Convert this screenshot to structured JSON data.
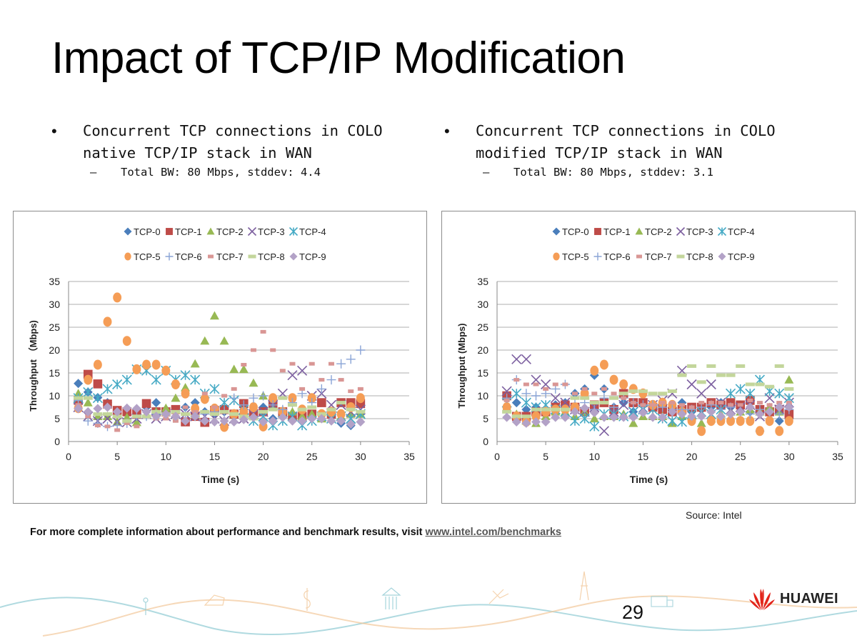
{
  "slide": {
    "title": "Impact of TCP/IP Modification",
    "page_number": "29",
    "brand": "HUAWEI",
    "source": "Source: Intel",
    "footnote_text": "For more complete information about performance and benchmark results, visit ",
    "footnote_link": "www.intel.com/benchmarks"
  },
  "bullets": {
    "left": {
      "bullet_glyph": "•",
      "line1": "Concurrent TCP connections in COLO",
      "line2": "native TCP/IP stack in WAN",
      "sub_dash": "–",
      "sub": "Total BW: 80 Mbps, stddev: 4.4"
    },
    "right": {
      "bullet_glyph": "•",
      "line1": "Concurrent TCP connections in COLO",
      "line2": "modified TCP/IP stack in WAN",
      "sub_dash": "–",
      "sub": "Total BW: 80 Mbps, stddev: 3.1"
    }
  },
  "colors": {
    "TCP-0": "#4a7ebb",
    "TCP-1": "#be4b48",
    "TCP-2": "#98b954",
    "TCP-3": "#7d60a0",
    "TCP-4": "#46aac5",
    "TCP-5": "#f59d56",
    "TCP-6": "#8aa4d6",
    "TCP-7": "#d99694",
    "TCP-8": "#c3d69b",
    "TCP-9": "#b3a2c7",
    "grid": "#bfbfbf",
    "brand_red": "#e2231a"
  },
  "chart_data": [
    {
      "type": "scatter",
      "title": "",
      "xlabel": "Time (s)",
      "ylabel": "Throughput （Mbps)",
      "xlim": [
        0,
        35
      ],
      "ylim": [
        0,
        35
      ],
      "xticks": [
        "0",
        "5",
        "10",
        "15",
        "20",
        "25",
        "30",
        "35"
      ],
      "yticks": [
        "0",
        "5",
        "10",
        "15",
        "20",
        "25",
        "30",
        "35"
      ],
      "grid": "horizontal",
      "legend_position": "top",
      "x": [
        1,
        2,
        3,
        4,
        5,
        6,
        7,
        8,
        9,
        10,
        11,
        12,
        13,
        14,
        15,
        16,
        17,
        18,
        19,
        20,
        21,
        22,
        23,
        24,
        25,
        26,
        27,
        28,
        29,
        30
      ],
      "series": [
        {
          "name": "TCP-0",
          "marker": "diamond",
          "values": [
            12.7,
            10.8,
            9.6,
            8.5,
            6.5,
            6.0,
            7.0,
            7.5,
            8.5,
            7.0,
            6.5,
            7.5,
            8.5,
            6.5,
            6.0,
            6.5,
            5.5,
            7.0,
            6.0,
            7.5,
            5.0,
            6.0,
            5.0,
            4.5,
            6.0,
            5.0,
            5.5,
            4.0,
            3.5,
            6.0
          ]
        },
        {
          "name": "TCP-1",
          "marker": "square",
          "values": [
            9.0,
            14.7,
            12.6,
            8.2,
            6.8,
            6.5,
            6.0,
            8.3,
            6.5,
            6.5,
            7.0,
            4.3,
            5.5,
            4.2,
            6.8,
            7.0,
            6.0,
            8.3,
            6.0,
            6.5,
            8.3,
            6.5,
            5.5,
            5.5,
            6.0,
            8.5,
            6.0,
            8.5,
            8.5,
            8.3
          ]
        },
        {
          "name": "TCP-2",
          "marker": "triangle",
          "values": [
            10.5,
            8.5,
            5.5,
            5.5,
            4.3,
            5.3,
            4.2,
            6.0,
            6.5,
            7.3,
            9.5,
            11.8,
            17.0,
            22.0,
            27.5,
            22.0,
            15.8,
            15.8,
            12.8,
            10.0,
            7.5,
            6.0,
            6.5,
            5.5,
            6.0,
            5.0,
            6.5,
            5.5,
            6.0,
            6.0
          ]
        },
        {
          "name": "TCP-3",
          "marker": "x",
          "values": [
            7.5,
            5.5,
            4.5,
            5.0,
            4.3,
            4.2,
            5.0,
            6.0,
            5.0,
            5.5,
            6.0,
            6.0,
            5.5,
            5.5,
            5.0,
            4.5,
            5.0,
            5.0,
            6.0,
            6.5,
            8.0,
            10.5,
            14.5,
            15.5,
            10.0,
            10.5,
            8.0,
            8.0,
            6.5,
            7.0
          ]
        },
        {
          "name": "TCP-4",
          "marker": "asterisk",
          "values": [
            9.5,
            10.8,
            9.5,
            11.5,
            12.5,
            13.5,
            15.8,
            15.5,
            13.5,
            15.5,
            13.5,
            14.5,
            13.5,
            10.5,
            11.5,
            8.5,
            9.0,
            7.0,
            4.5,
            5.5,
            3.5,
            4.5,
            5.5,
            3.5,
            4.5,
            5.5,
            5.0,
            5.5,
            5.0,
            6.0
          ]
        },
        {
          "name": "TCP-5",
          "marker": "circle",
          "values": [
            7.3,
            13.5,
            16.8,
            26.2,
            31.5,
            22.0,
            15.8,
            16.8,
            16.8,
            15.5,
            12.5,
            10.5,
            7.2,
            9.3,
            7.2,
            3.2,
            6.0,
            6.5,
            7.5,
            3.3,
            9.5,
            6.5,
            9.5,
            7.0,
            9.5,
            6.0,
            6.5,
            6.0,
            7.5,
            9.5
          ]
        },
        {
          "name": "TCP-6",
          "marker": "plus",
          "values": [
            9.0,
            4.5,
            4.0,
            3.3,
            3.5,
            4.0,
            5.5,
            5.5,
            6.0,
            6.0,
            5.5,
            6.0,
            5.5,
            6.0,
            6.5,
            6.5,
            9.5,
            8.0,
            9.5,
            10.0,
            8.0,
            7.0,
            8.5,
            10.5,
            8.5,
            11.5,
            13.5,
            17.0,
            18.0,
            20.0
          ]
        },
        {
          "name": "TCP-7",
          "marker": "dash",
          "values": [
            8.0,
            5.5,
            3.5,
            3.3,
            2.5,
            4.0,
            3.3,
            6.5,
            5.0,
            5.0,
            4.5,
            7.5,
            6.5,
            10.5,
            7.5,
            10.0,
            11.5,
            16.8,
            20.0,
            24.0,
            20.0,
            15.5,
            17.0,
            11.5,
            17.0,
            13.5,
            17.0,
            13.5,
            11.0,
            11.5
          ]
        },
        {
          "name": "TCP-8",
          "marker": "bar",
          "values": [
            9.5,
            9.5,
            6.0,
            6.0,
            5.5,
            4.5,
            5.5,
            5.5,
            6.5,
            6.0,
            6.5,
            6.0,
            5.5,
            6.5,
            6.0,
            6.5,
            6.0,
            5.5,
            5.0,
            6.5,
            7.0,
            9.5,
            8.0,
            7.0,
            7.5,
            6.0,
            7.0,
            8.5,
            7.0,
            6.5
          ]
        },
        {
          "name": "TCP-9",
          "marker": "diamond",
          "values": [
            7.2,
            6.5,
            7.2,
            7.5,
            6.5,
            7.3,
            7.2,
            6.5,
            5.5,
            6.0,
            5.5,
            4.5,
            5.5,
            4.5,
            4.3,
            4.5,
            4.3,
            4.8,
            5.3,
            4.3,
            4.5,
            5.3,
            4.5,
            4.5,
            5.0,
            5.0,
            4.5,
            4.5,
            3.8,
            4.3
          ]
        }
      ]
    },
    {
      "type": "scatter",
      "title": "",
      "xlabel": "Time (s)",
      "ylabel": "Throughput (Mbps)",
      "xlim": [
        0,
        35
      ],
      "ylim": [
        0,
        35
      ],
      "xticks": [
        "0",
        "5",
        "10",
        "15",
        "20",
        "25",
        "30",
        "35"
      ],
      "yticks": [
        "0",
        "5",
        "10",
        "15",
        "20",
        "25",
        "30",
        "35"
      ],
      "grid": "horizontal",
      "legend_position": "top",
      "x": [
        1,
        2,
        3,
        4,
        5,
        6,
        7,
        8,
        9,
        10,
        11,
        12,
        13,
        14,
        15,
        16,
        17,
        18,
        19,
        20,
        21,
        22,
        23,
        24,
        25,
        26,
        27,
        28,
        29,
        30
      ],
      "series": [
        {
          "name": "TCP-0",
          "marker": "diamond",
          "values": [
            9.5,
            8.5,
            7.0,
            7.5,
            6.5,
            8.0,
            8.5,
            10.5,
            11.5,
            14.5,
            11.5,
            7.5,
            8.5,
            6.5,
            6.5,
            7.5,
            7.0,
            7.5,
            8.5,
            6.5,
            7.0,
            7.5,
            8.5,
            7.5,
            8.0,
            6.5,
            2.3,
            7.0,
            4.5,
            5.0
          ]
        },
        {
          "name": "TCP-1",
          "marker": "square",
          "values": [
            10.0,
            5.5,
            5.5,
            6.5,
            6.5,
            7.5,
            8.0,
            7.5,
            6.5,
            8.0,
            8.5,
            7.0,
            10.5,
            8.5,
            8.5,
            7.5,
            7.0,
            6.5,
            7.0,
            7.5,
            7.5,
            8.5,
            8.0,
            8.5,
            8.0,
            9.0,
            7.0,
            6.5,
            7.0,
            6.0
          ]
        },
        {
          "name": "TCP-2",
          "marker": "triangle",
          "values": [
            7.5,
            6.0,
            4.5,
            4.0,
            5.5,
            6.5,
            6.5,
            5.5,
            6.5,
            5.0,
            5.5,
            5.5,
            6.0,
            4.0,
            5.5,
            5.5,
            5.5,
            4.0,
            5.5,
            5.5,
            4.0,
            5.0,
            6.0,
            6.5,
            6.5,
            7.0,
            6.5,
            7.5,
            6.5,
            13.5
          ]
        },
        {
          "name": "TCP-3",
          "marker": "x",
          "values": [
            11.0,
            18.0,
            18.0,
            13.5,
            12.5,
            9.5,
            8.5,
            7.0,
            6.5,
            7.5,
            2.3,
            6.5,
            8.0,
            6.5,
            7.0,
            8.0,
            9.0,
            10.5,
            15.5,
            12.5,
            10.5,
            12.5,
            8.5,
            7.0,
            7.5,
            8.0,
            5.5,
            9.5,
            7.0,
            8.5
          ]
        },
        {
          "name": "TCP-4",
          "marker": "asterisk",
          "values": [
            8.5,
            10.5,
            8.5,
            7.5,
            8.0,
            7.0,
            6.5,
            4.5,
            5.0,
            3.3,
            6.0,
            6.0,
            5.5,
            6.5,
            7.0,
            7.0,
            5.0,
            4.5,
            4.3,
            6.0,
            6.5,
            6.0,
            7.0,
            10.5,
            11.5,
            10.5,
            13.5,
            11.0,
            10.5,
            9.5
          ]
        },
        {
          "name": "TCP-5",
          "marker": "circle",
          "values": [
            7.5,
            5.5,
            4.3,
            5.5,
            6.5,
            7.0,
            7.0,
            7.5,
            10.5,
            15.5,
            16.8,
            13.5,
            12.5,
            11.5,
            10.5,
            8.0,
            8.5,
            8.0,
            6.5,
            4.5,
            2.3,
            4.5,
            4.5,
            4.5,
            4.5,
            4.5,
            2.3,
            4.5,
            2.3,
            4.5
          ]
        },
        {
          "name": "TCP-6",
          "marker": "plus",
          "values": [
            9.5,
            13.5,
            10.5,
            10.0,
            10.5,
            11.5,
            12.5,
            9.5,
            8.5,
            7.0,
            9.5,
            7.5,
            9.5,
            8.5,
            8.0,
            8.0,
            7.5,
            7.0,
            7.0,
            7.0,
            7.5,
            8.0,
            7.0,
            7.5,
            6.5,
            6.0,
            7.0,
            6.5,
            6.0,
            7.0
          ]
        },
        {
          "name": "TCP-7",
          "marker": "dash",
          "values": [
            9.0,
            13.5,
            12.5,
            12.5,
            11.5,
            12.5,
            12.5,
            10.5,
            11.5,
            10.5,
            11.5,
            10.5,
            9.5,
            8.5,
            8.0,
            8.0,
            8.5,
            8.5,
            8.0,
            7.5,
            8.5,
            8.5,
            8.5,
            8.0,
            8.0,
            9.0,
            8.5,
            8.0,
            8.5,
            8.5
          ]
        },
        {
          "name": "TCP-8",
          "marker": "bar",
          "values": [
            6.5,
            5.5,
            5.5,
            7.0,
            7.0,
            7.0,
            7.0,
            9.5,
            9.5,
            8.5,
            8.5,
            9.5,
            10.5,
            11.0,
            11.0,
            10.5,
            10.5,
            11.0,
            14.5,
            16.5,
            13.0,
            16.5,
            14.5,
            14.5,
            16.5,
            12.5,
            12.5,
            12.0,
            16.5,
            11.5
          ]
        },
        {
          "name": "TCP-9",
          "marker": "diamond",
          "values": [
            5.3,
            4.3,
            4.0,
            4.3,
            4.3,
            5.3,
            5.3,
            6.5,
            7.3,
            6.3,
            5.3,
            5.3,
            5.3,
            5.3,
            6.3,
            5.3,
            5.3,
            6.5,
            6.0,
            5.5,
            5.5,
            6.5,
            5.5,
            6.0,
            6.5,
            7.5,
            6.0,
            6.5,
            7.5,
            7.5
          ]
        }
      ]
    }
  ]
}
